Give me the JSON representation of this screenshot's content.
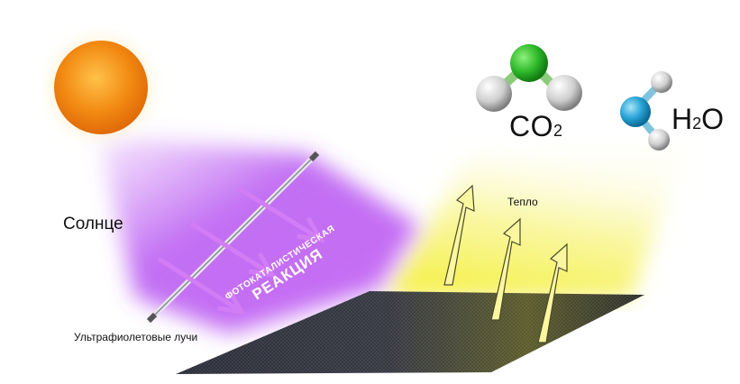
{
  "labels": {
    "sun": "Солнце",
    "uv_rays": "Ультрафиолетовые лучи",
    "heat": "Тепло",
    "co2_main": "CO",
    "co2_sub": "2",
    "h2o_h": "H",
    "h2o_sub": "2",
    "h2o_o": "O",
    "reaction_line1": "ФОТОКАТАЛИСТИЧЕСКАЯ",
    "reaction_line2": "РЕАКЦИЯ"
  },
  "colors": {
    "sun": "#f28a12",
    "uv_glow": "#b34cf0",
    "heat_glow": "#f6f03c",
    "plate": "#2b2d3a",
    "carbon_atom": "#2db82a",
    "oxygen_atom": "#2aa5d8",
    "hydrogen_atom": "#d9d9d9"
  }
}
